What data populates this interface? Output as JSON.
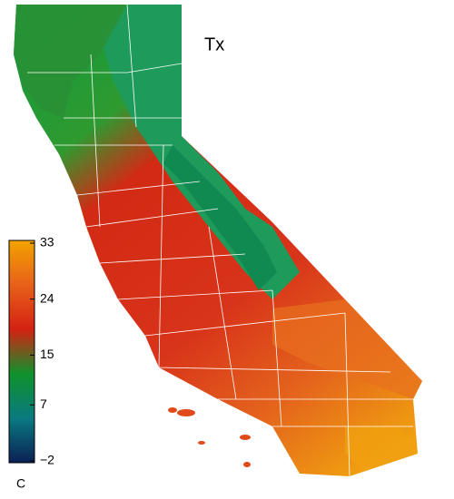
{
  "title": "Tx",
  "colorbar": {
    "unit": "C",
    "lim": [
      -2,
      33
    ],
    "ticks": [
      {
        "value": -2,
        "label": "−2"
      },
      7,
      15,
      24,
      33
    ],
    "colors": [
      "#0b1f55",
      "#0a7a80",
      "#10922c",
      "#d42212",
      "#e8601a",
      "#f2a400"
    ]
  }
}
